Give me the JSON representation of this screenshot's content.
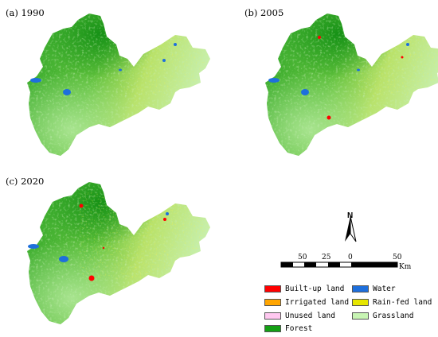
{
  "panels": [
    {
      "label": "(a)  1990"
    },
    {
      "label": "(b)  2005"
    },
    {
      "label": "(c)  2020"
    }
  ],
  "north_arrow": {
    "label": "N"
  },
  "scale_bar": {
    "ticks": [
      "50",
      "25",
      "0",
      "50"
    ],
    "unit": "Km"
  },
  "legend": {
    "items": [
      {
        "label": "Built-up land",
        "color": "#ff0000"
      },
      {
        "label": "Water",
        "color": "#1e6fdc"
      },
      {
        "label": "Irrigated land",
        "color": "#ffa500"
      },
      {
        "label": "Rain-fed land",
        "color": "#e6e600"
      },
      {
        "label": "Unused land",
        "color": "#ffc8f0"
      },
      {
        "label": "Grassland",
        "color": "#c8f5b4"
      },
      {
        "label": "Forest",
        "color": "#14a014"
      }
    ]
  }
}
